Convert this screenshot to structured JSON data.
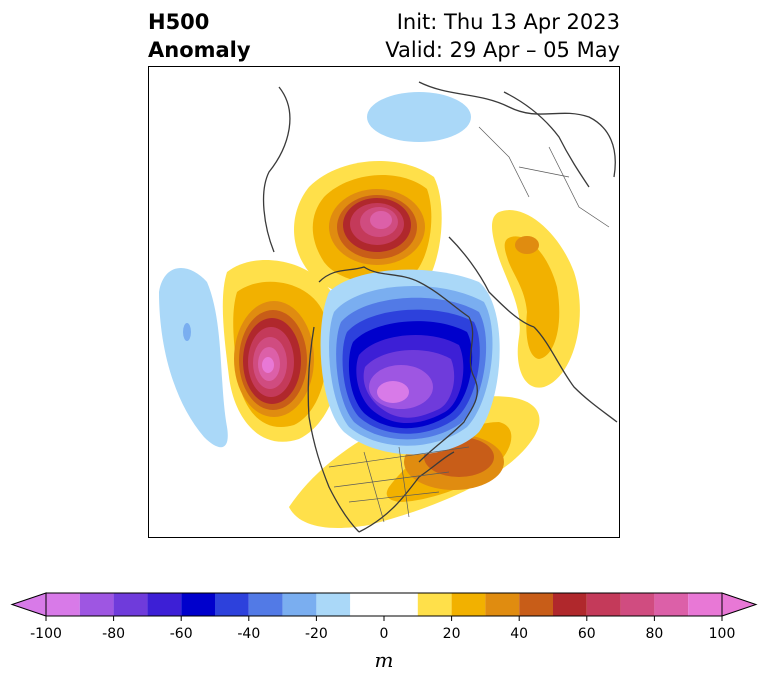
{
  "title": {
    "left_line1": "H500",
    "left_line2": "Anomaly",
    "right_line1": "Init: Thu 13 Apr 2023",
    "right_line2": "Valid: 29 Apr – 05 May"
  },
  "map": {
    "projection": "north-polar-stereographic",
    "field": "500 hPa geopotential height anomaly",
    "features": [
      {
        "name": "positive-anomaly-north-atlantic-greenland",
        "max_m": 80
      },
      {
        "name": "positive-anomaly-northeast-pacific",
        "max_m": 90
      },
      {
        "name": "positive-anomaly-western-atlantic",
        "max_m": 50
      },
      {
        "name": "positive-anomaly-siberia-asia",
        "max_m": 30
      },
      {
        "name": "negative-anomaly-canada-hudson-bay",
        "min_m": -90
      },
      {
        "name": "negative-anomaly-arctic-europe",
        "min_m": -20
      },
      {
        "name": "negative-anomaly-central-pacific",
        "min_m": -30
      }
    ]
  },
  "colorbar": {
    "unit": "m",
    "extend": "both",
    "levels": [
      -100,
      -90,
      -80,
      -70,
      -60,
      -50,
      -40,
      -30,
      -20,
      -10,
      10,
      20,
      30,
      40,
      50,
      60,
      70,
      80,
      90,
      100
    ],
    "colors": [
      "#d87ae8",
      "#9e56e2",
      "#6f3bdb",
      "#3d1fd6",
      "#0000cc",
      "#2d41dc",
      "#527ae6",
      "#7aaef0",
      "#aad8f8",
      "#ffffff",
      "#ffe04a",
      "#f2b100",
      "#e08c10",
      "#c85d18",
      "#b0282c",
      "#c43a5a",
      "#d04c80",
      "#dc60a8",
      "#e878d6"
    ],
    "tick_labels": [
      "-100",
      "-80",
      "-60",
      "-40",
      "-20",
      "0",
      "20",
      "40",
      "60",
      "80",
      "100"
    ],
    "tick_values": [
      -100,
      -80,
      -60,
      -40,
      -20,
      0,
      20,
      40,
      60,
      80,
      100
    ]
  }
}
